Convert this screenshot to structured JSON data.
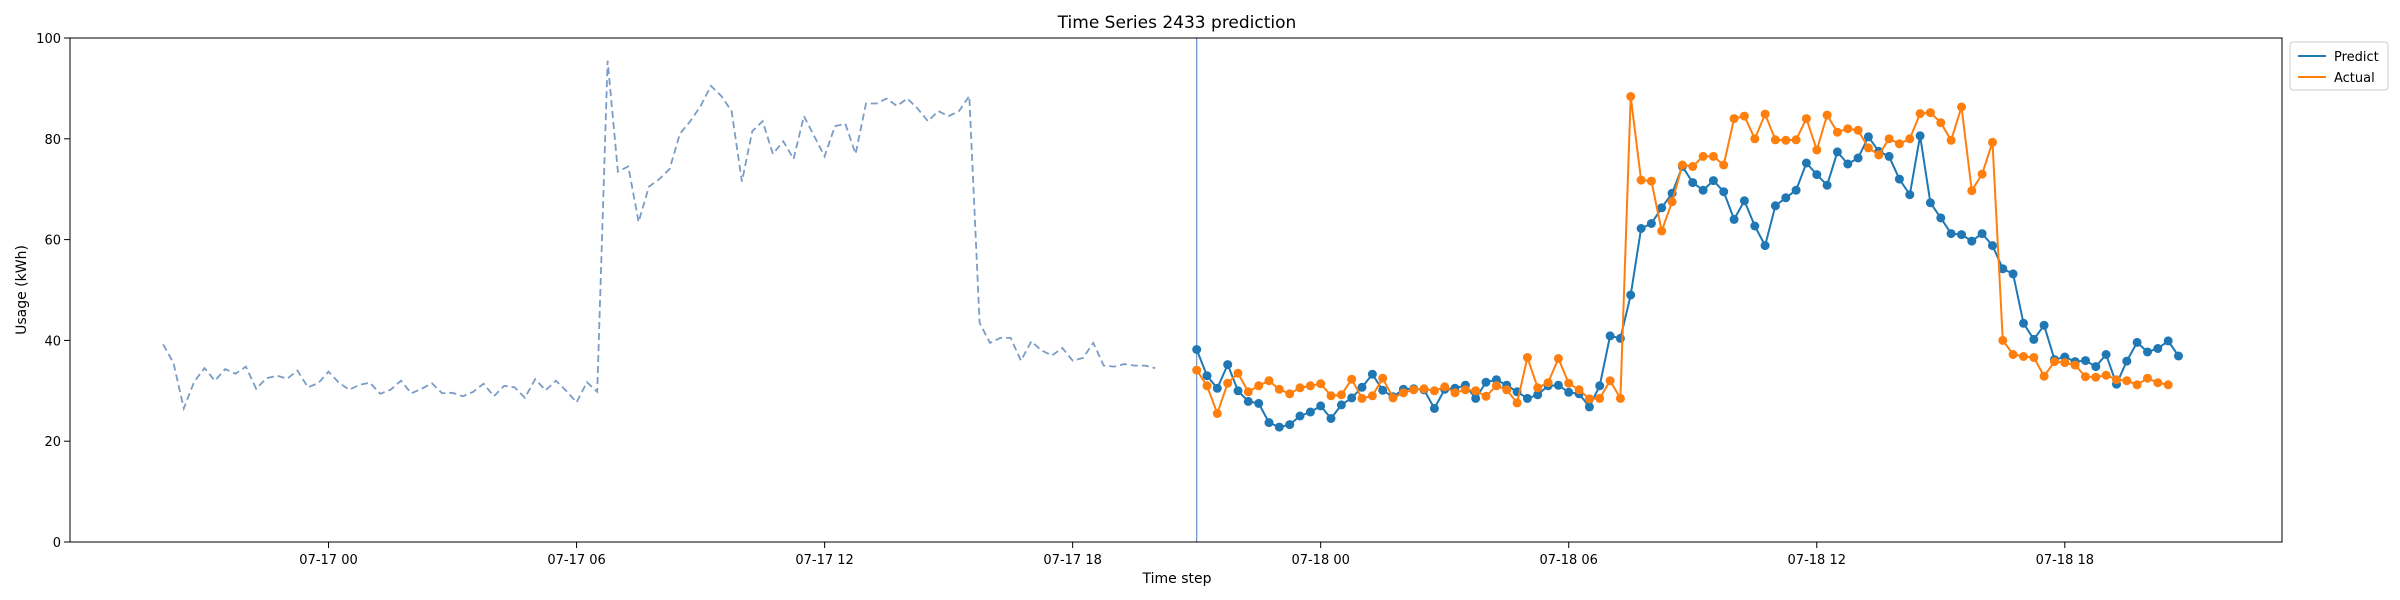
{
  "chart_data": {
    "type": "line",
    "title": "Time Series 2433 prediction",
    "xlabel": "Time step",
    "ylabel": "Usage (kWh)",
    "ylim": [
      0,
      100
    ],
    "yticks": [
      0,
      20,
      40,
      60,
      80,
      100
    ],
    "x_start": "07-16 20:00",
    "x_end": "07-18 21:00",
    "x_step_minutes": 15,
    "xticks": [
      "07-17 00",
      "07-17 06",
      "07-17 12",
      "07-17 18",
      "07-18 00",
      "07-18 06",
      "07-18 12",
      "07-18 18"
    ],
    "forecast_start": "07-17 21:00",
    "grid": false,
    "legend": {
      "position": "top-right"
    },
    "history": {
      "start": "07-16 20:00",
      "style": "dashed",
      "color": "#7a9cc6",
      "values": [
        39.2,
        35.5,
        26.5,
        31.8,
        34.5,
        32.0,
        34.3,
        33.4,
        34.8,
        30.4,
        32.5,
        33.0,
        32.4,
        34.0,
        30.7,
        31.5,
        33.8,
        31.6,
        30.2,
        31.2,
        31.6,
        29.4,
        30.2,
        32.0,
        29.5,
        30.4,
        31.5,
        29.5,
        29.6,
        28.9,
        29.8,
        31.4,
        28.9,
        31.0,
        30.7,
        28.6,
        32.3,
        30.1,
        32.0,
        30.0,
        27.7,
        31.7,
        29.8,
        95.5,
        73.5,
        74.5,
        63.5,
        70.5,
        72.0,
        74.0,
        81.0,
        83.5,
        86.5,
        90.5,
        88.5,
        85.5,
        71.5,
        81.5,
        83.5,
        77.0,
        79.5,
        76.0,
        84.5,
        80.5,
        76.5,
        82.5,
        83.0,
        77.0,
        87.0,
        87.0,
        88.0,
        86.5,
        88.0,
        86.0,
        83.5,
        85.5,
        84.5,
        85.5,
        88.5,
        43.5,
        39.5,
        40.5,
        40.5,
        36.0,
        39.8,
        38.0,
        37.0,
        38.5,
        36.0,
        36.5,
        39.5,
        35.0,
        34.8,
        35.3,
        35.0,
        35.0,
        34.5
      ]
    },
    "series": [
      {
        "name": "Predict",
        "color": "#1f77b4",
        "start": "07-17 21:00",
        "values": [
          38.2,
          33.0,
          30.5,
          35.2,
          30.0,
          27.9,
          27.5,
          23.7,
          22.8,
          23.3,
          25.0,
          25.8,
          27.0,
          24.5,
          27.2,
          28.6,
          30.7,
          33.3,
          30.1,
          28.8,
          30.3,
          30.4,
          30.2,
          26.5,
          30.3,
          30.5,
          31.1,
          28.5,
          31.7,
          32.2,
          31.1,
          29.8,
          28.5,
          29.2,
          31.0,
          31.1,
          29.7,
          29.4,
          26.8,
          31.0,
          40.9,
          40.4,
          49.0,
          62.2,
          63.2,
          66.3,
          69.2,
          74.5,
          71.3,
          69.8,
          71.7,
          69.5,
          64.0,
          67.7,
          62.7,
          58.8,
          66.7,
          68.3,
          69.8,
          75.2,
          72.9,
          70.8,
          77.4,
          75.0,
          76.2,
          80.4,
          77.5,
          76.5,
          72.0,
          68.9,
          80.6,
          67.3,
          64.3,
          61.2,
          61.0,
          59.7,
          61.2,
          58.8,
          54.2,
          53.2,
          43.4,
          40.2,
          43.0,
          36.2,
          36.7,
          35.8,
          36.0,
          34.8,
          37.2,
          31.3,
          35.9,
          39.6,
          37.7,
          38.4,
          39.9,
          36.9
        ]
      },
      {
        "name": "Actual",
        "color": "#ff7f0e",
        "start": "07-17 21:00",
        "values": [
          34.1,
          31.0,
          25.5,
          31.5,
          33.5,
          29.8,
          31.0,
          32.0,
          30.3,
          29.4,
          30.6,
          31.0,
          31.4,
          29.0,
          29.2,
          32.3,
          28.5,
          29.0,
          32.5,
          28.6,
          29.6,
          30.2,
          30.4,
          30.0,
          30.8,
          29.6,
          30.2,
          30.0,
          28.9,
          31.0,
          30.2,
          27.6,
          36.6,
          30.6,
          31.6,
          36.4,
          31.5,
          30.2,
          28.4,
          28.5,
          32.0,
          28.5,
          88.4,
          71.8,
          71.6,
          61.7,
          67.5,
          74.8,
          74.5,
          76.5,
          76.5,
          74.8,
          84.0,
          84.5,
          80.0,
          84.9,
          79.8,
          79.7,
          79.8,
          84.0,
          77.8,
          84.7,
          81.3,
          82.0,
          81.7,
          78.2,
          76.8,
          80.0,
          79.0,
          80.0,
          85.0,
          85.2,
          83.2,
          79.7,
          86.3,
          69.7,
          73.0,
          79.3,
          40.0,
          37.2,
          36.8,
          36.6,
          32.9,
          35.8,
          35.6,
          35.1,
          32.8,
          32.7,
          33.1,
          32.2,
          32.0,
          31.2,
          32.5,
          31.6,
          31.2
        ]
      }
    ]
  }
}
